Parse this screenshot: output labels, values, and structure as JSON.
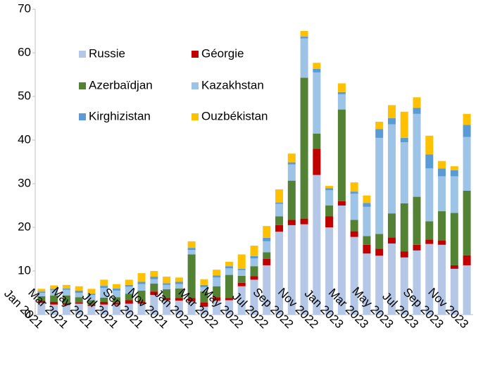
{
  "chart_data": {
    "type": "stacked_bar",
    "categories": [
      "Jan 2021",
      null,
      "Mar 2021",
      null,
      "May 2021",
      null,
      "Jul 2021",
      null,
      "Sep 2021",
      null,
      "Nov 2021",
      null,
      "Jan 2022",
      null,
      "Mar 2022",
      null,
      "May 2022",
      null,
      "Jul 2022",
      null,
      "Sep 2022",
      null,
      "Nov 2022",
      null,
      "Jan 2023",
      null,
      "Mar 2023",
      null,
      "May 2023",
      null,
      "Jul 2023",
      null,
      "Sep 2023",
      null,
      "Nov 2023"
    ],
    "series": [
      {
        "name": "Russie",
        "color": "#b4c7e7",
        "values": [
          2.7,
          2.3,
          2.2,
          2.5,
          2,
          2.3,
          2.3,
          2.5,
          2.5,
          4.5,
          3.3,
          3.2,
          3,
          1.8,
          3.2,
          3.3,
          6.5,
          8,
          11.3,
          19,
          20.5,
          20.7,
          32,
          20,
          25,
          17.8,
          14,
          13.5,
          16.3,
          13.1,
          14.7,
          16.2,
          16,
          10.5,
          11.3
        ]
      },
      {
        "name": "Géorgie",
        "color": "#c00000",
        "values": [
          0.5,
          0.6,
          0.4,
          0.3,
          0.3,
          0.6,
          0.4,
          0.8,
          0.5,
          0.8,
          0.5,
          0.6,
          0.8,
          1,
          0.8,
          0.5,
          0.8,
          0.8,
          1.5,
          1.5,
          1.2,
          1.3,
          6,
          2.5,
          1,
          1.3,
          2,
          1.6,
          1.4,
          1.4,
          1.3,
          1,
          1,
          0.8,
          2.3
        ]
      },
      {
        "name": "Azerbaïdjan",
        "color": "#548235",
        "values": [
          1,
          1.5,
          1.8,
          1.2,
          1,
          1,
          1.3,
          1.5,
          2.5,
          1.8,
          2,
          2.2,
          10,
          2.5,
          2.5,
          5.3,
          1.6,
          2.3,
          1.5,
          2,
          9,
          32.3,
          3.5,
          2.5,
          21,
          2.6,
          2,
          3.4,
          5.5,
          11,
          11,
          4.2,
          6.7,
          12,
          14.8
        ]
      },
      {
        "name": "Kazakhstan",
        "color": "#9dc3e6",
        "values": [
          0.8,
          1.2,
          1.3,
          1,
          1.2,
          2.2,
          1.5,
          1.6,
          1.5,
          1,
          1,
          1,
          1,
          1,
          2,
          1.5,
          1.3,
          1.8,
          2.5,
          2.9,
          3.7,
          9,
          14,
          3.5,
          3.5,
          6,
          6.7,
          22,
          20.4,
          14,
          19,
          12.1,
          8,
          8.4,
          12.3
        ]
      },
      {
        "name": "Kirghizistan",
        "color": "#5b9bd5",
        "values": [
          0.3,
          0.3,
          0.3,
          0.5,
          0.3,
          0.5,
          0.5,
          0.4,
          0.5,
          0.6,
          0.4,
          0.5,
          0.5,
          0.5,
          0.5,
          0.5,
          0.3,
          0.5,
          0.8,
          0.3,
          0.5,
          0.4,
          0.8,
          0.5,
          0.5,
          0.5,
          0.9,
          2,
          1.4,
          1,
          1.4,
          3.2,
          1.8,
          1.4,
          2.8
        ]
      },
      {
        "name": "Ouzbékistan",
        "color": "#ffc000",
        "values": [
          0.6,
          0.8,
          0.8,
          1,
          1.1,
          1.4,
          1,
          1.2,
          2,
          1.3,
          1.5,
          1,
          1.5,
          1.3,
          1.3,
          1,
          3.3,
          2.4,
          2.7,
          3,
          2,
          1.3,
          1.4,
          0.5,
          2,
          2.1,
          1.7,
          1.7,
          3,
          6,
          2.4,
          4.3,
          1.7,
          0.9,
          2.5
        ]
      }
    ],
    "ylim": [
      0,
      70
    ],
    "yticks": [
      0,
      10,
      20,
      30,
      40,
      50,
      60,
      70
    ],
    "grid": false
  }
}
